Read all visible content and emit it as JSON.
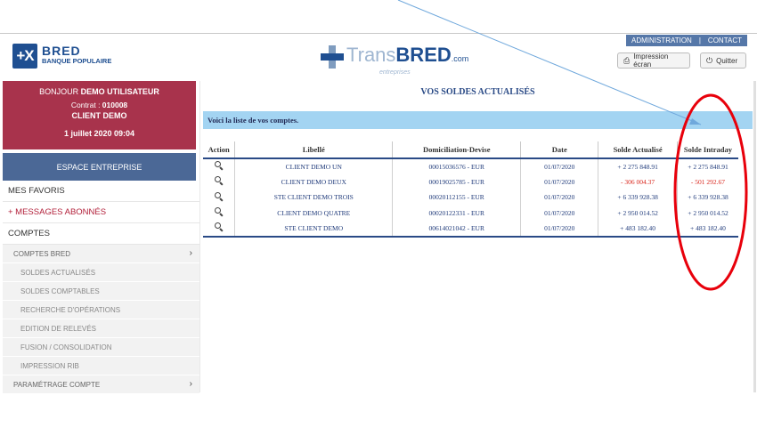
{
  "header": {
    "bred_mark": "+X",
    "bred_name": "BRED",
    "bred_sub": "BANQUE POPULAIRE",
    "trans_light": "Trans",
    "trans_bold": "BRED",
    "trans_com": ".com",
    "trans_sub": "entreprises",
    "nav": {
      "admin": "ADMINISTRATION",
      "sep": "|",
      "contact": "CONTACT"
    },
    "print_label": "Impression écran",
    "quit_label": "Quitter"
  },
  "welcome": {
    "greeting_prefix": "BONJOUR ",
    "user": "DEMO UTILISATEUR",
    "contract_prefix": "Contrat : ",
    "contract": "010008",
    "client": "CLIENT DEMO",
    "datetime": "1 juillet 2020  09:04"
  },
  "sidebar": {
    "espace": "ESPACE ENTREPRISE",
    "favoris": "MES FAVORIS",
    "messages": "+ MESSAGES ABONNÉS",
    "comptes": "COMPTES",
    "comptes_bred": "COMPTES BRED",
    "sub": [
      "SOLDES ACTUALISÉS",
      "SOLDES COMPTABLES",
      "RECHERCHE D'OPÉRATIONS",
      "EDITION DE RELEVÉS",
      "FUSION / CONSOLIDATION",
      "IMPRESSION RIB"
    ],
    "parametrage": "PARAMÉTRAGE COMPTE"
  },
  "main": {
    "title": "VOS SOLDES ACTUALISÉS",
    "info": "Voici la liste de vos comptes.",
    "columns": [
      "Action",
      "Libellé",
      "Domiciliation-Devise",
      "Date",
      "Solde Actualisé",
      "Solde Intraday"
    ],
    "rows": [
      {
        "libelle": "CLIENT DEMO UN",
        "domiciliation": "00015036576 - EUR",
        "date": "01/07/2020",
        "solde": "+ 2 275 848.91",
        "intraday": "+ 2 275 848.91",
        "negative": false
      },
      {
        "libelle": "CLIENT DEMO DEUX",
        "domiciliation": "00019025785 - EUR",
        "date": "01/07/2020",
        "solde": "- 306 004.37",
        "intraday": "- 501 292.67",
        "negative": true
      },
      {
        "libelle": "STE CLIENT DEMO TROIS",
        "domiciliation": "00020112155 - EUR",
        "date": "01/07/2020",
        "solde": "+ 6 339 928.38",
        "intraday": "+ 6 339 928.38",
        "negative": false
      },
      {
        "libelle": "CLIENT DEMO QUATRE",
        "domiciliation": "00020122331 - EUR",
        "date": "01/07/2020",
        "solde": "+ 2 950 014.52",
        "intraday": "+ 2 950 014.52",
        "negative": false
      },
      {
        "libelle": "STE CLIENT DEMO",
        "domiciliation": "00614021042 - EUR",
        "date": "01/07/2020",
        "solde": "+ 483 182.40",
        "intraday": "+ 483 182.40",
        "negative": false
      }
    ]
  },
  "colors": {
    "bred_blue": "#1f4f91",
    "welcome_red": "#a8334c",
    "espace_blue": "#4b6896",
    "info_bar": "#a3d4f2",
    "annotation_red": "#e8000b",
    "annotation_line": "#6fa8dc"
  }
}
